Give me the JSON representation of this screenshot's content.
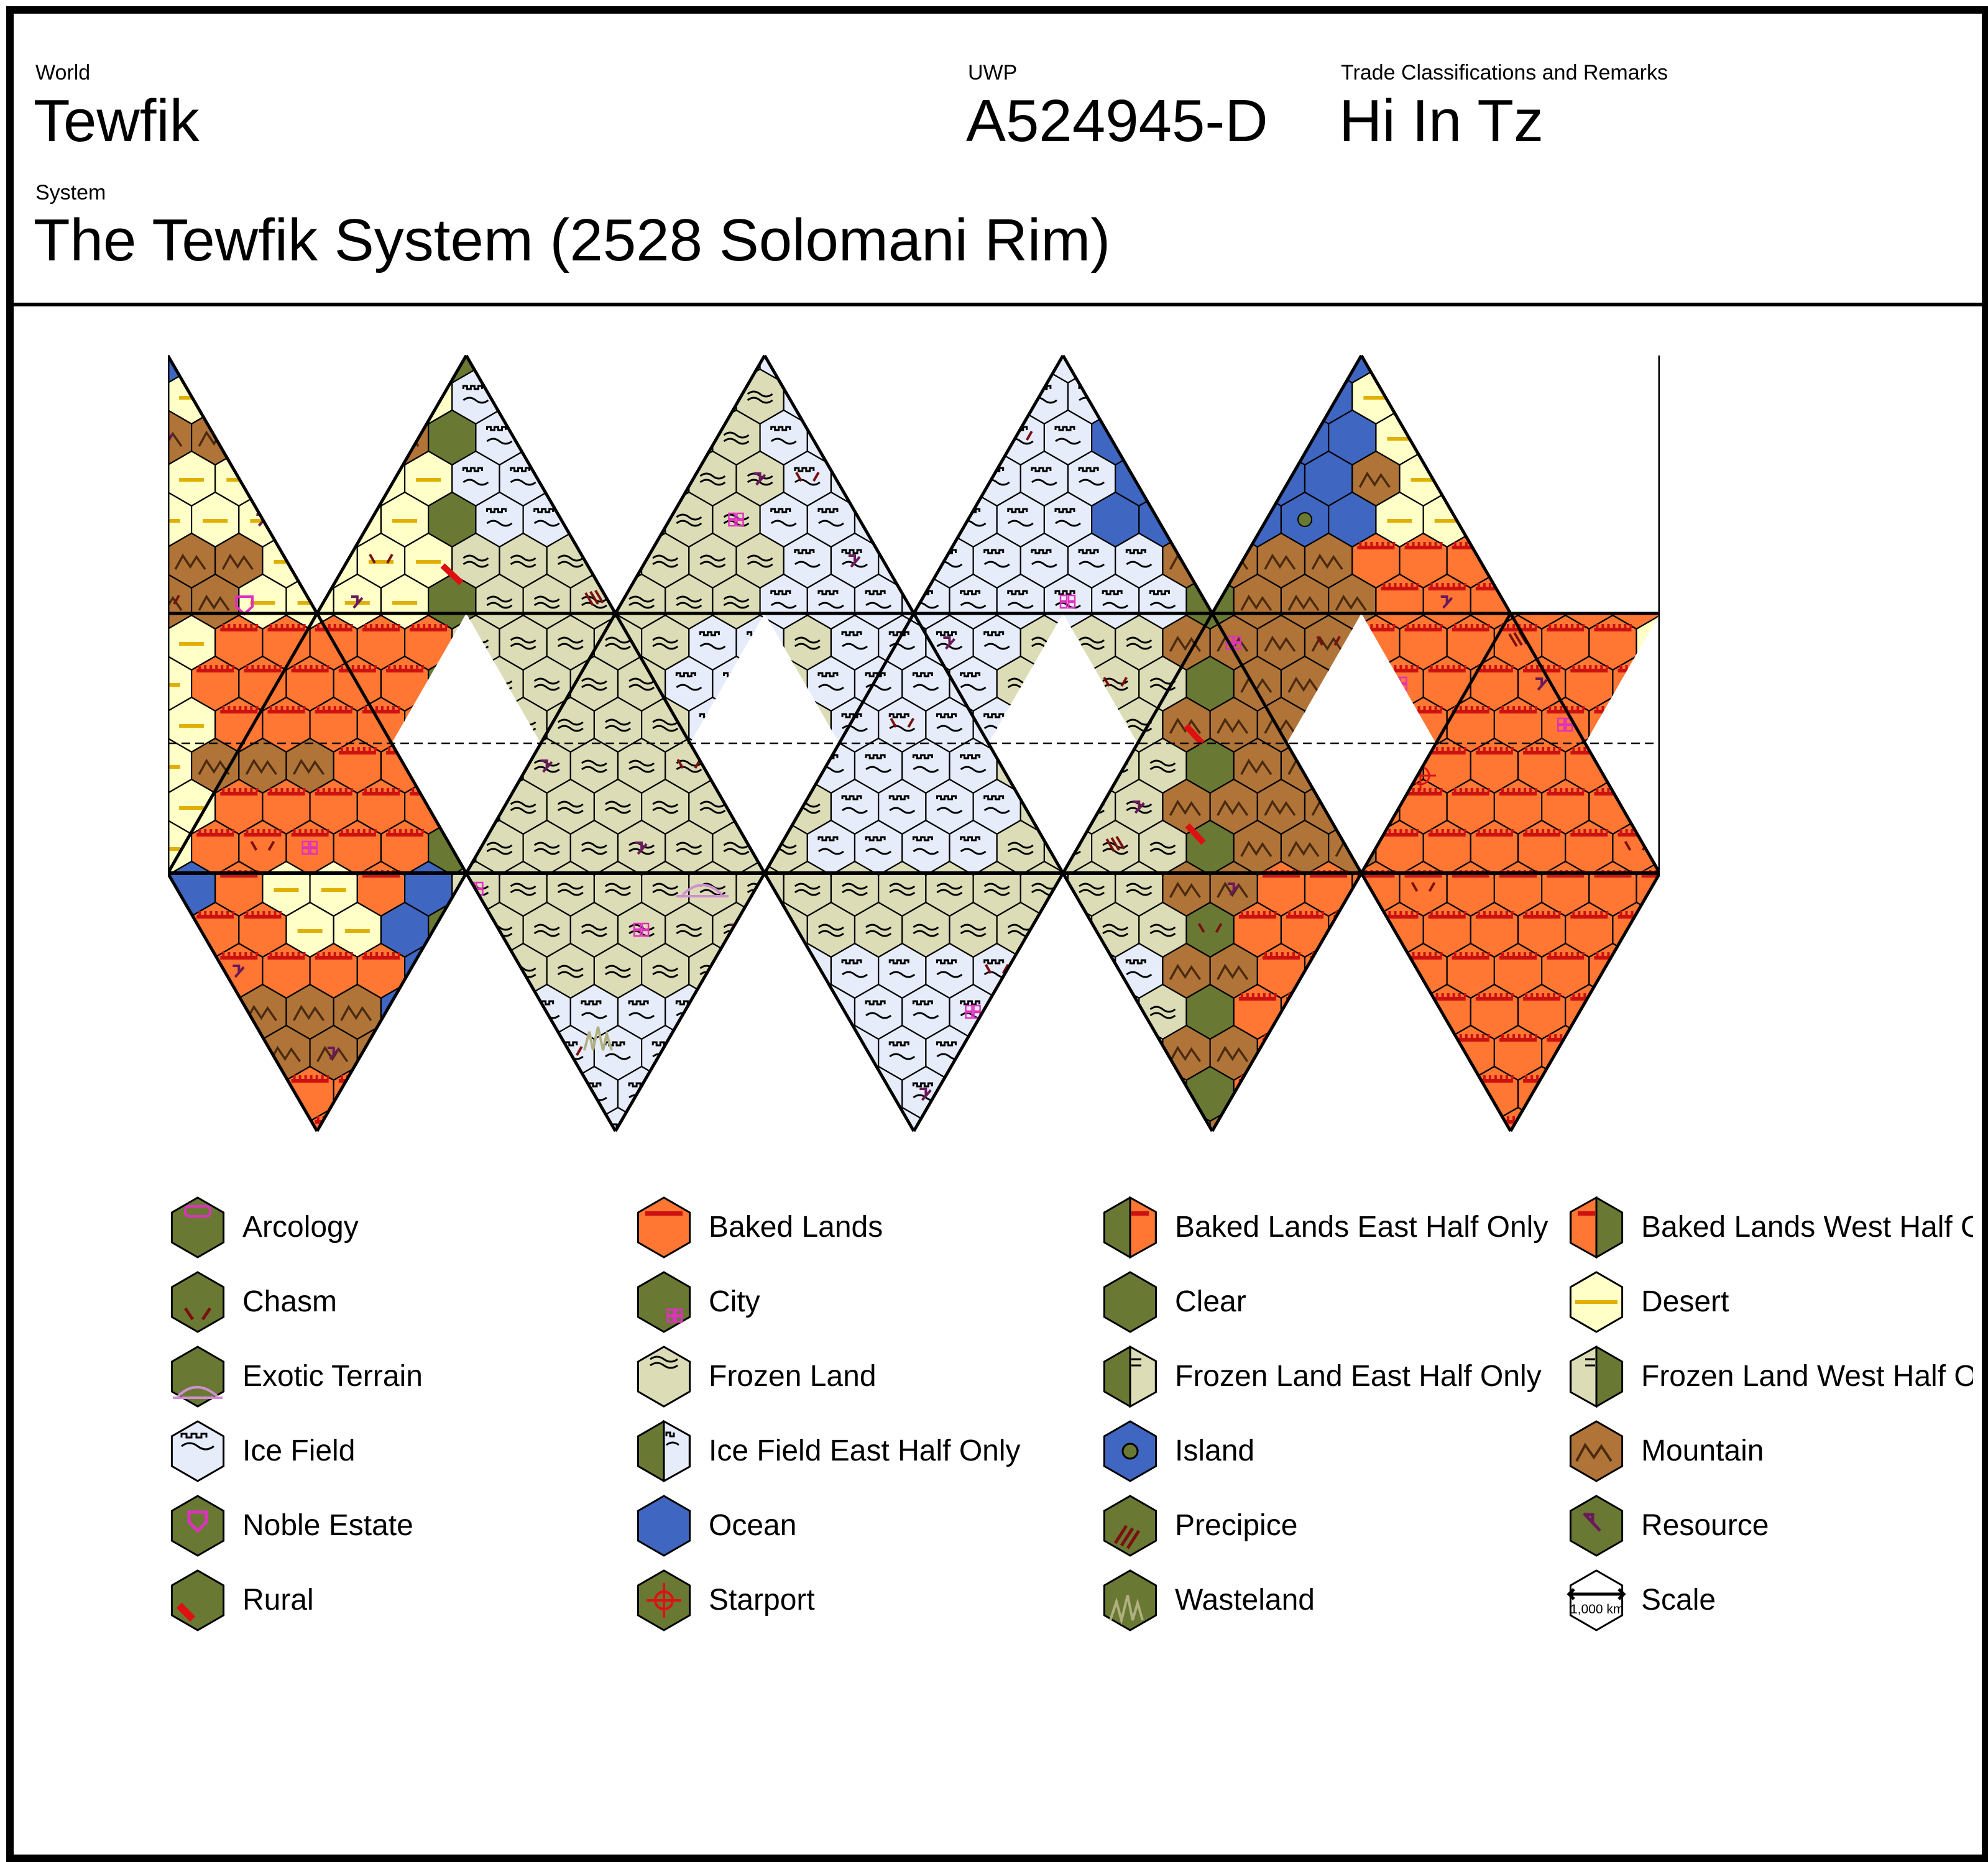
{
  "header": {
    "world_label": "World",
    "world_name": "Tewfik",
    "uwp_label": "UWP",
    "uwp_value": "A524945-D",
    "trade_label": "Trade Classifications and Remarks",
    "trade_value": "Hi In Tz",
    "system_label": "System",
    "system_value": "The Tewfik System (2528 Solomani Rim)"
  },
  "colors": {
    "clear": "#697934",
    "ocean": "#3f66c0",
    "baked": "#ff7733",
    "baked_line": "#cc1111",
    "desert": "#ffffc8",
    "desert_line": "#e0b000",
    "frozen": "#dcdcb6",
    "ice": "#e6ecfa",
    "mountain": "#b07438",
    "island_dot": "#697934",
    "accent_magenta": "#e030c0",
    "resource": "#6a1a5a",
    "chasm": "#7a1010",
    "starport": "#dd1111",
    "exotic": "#d090d0",
    "wasteland": "#b0b080"
  },
  "map": {
    "projection": "icosahedral",
    "faces_per_row": 5,
    "bands": [
      "north-cap",
      "equator",
      "south-cap"
    ],
    "terrain_by_column": [
      {
        "north": "ocean,mountain,desert",
        "equator": "baked,desert",
        "south": "baked,desert,ocean"
      },
      {
        "north": "ice,frozen",
        "equator": "frozen,ice",
        "south": "frozen,ocean"
      },
      {
        "north": "frozen,ice",
        "equator": "ice,frozen",
        "south": "ice,frozen"
      },
      {
        "north": "ice,ocean",
        "equator": "frozen,clear,baked",
        "south": "frozen,clear,baked"
      },
      {
        "north": "desert,mountain",
        "equator": "baked,mountain",
        "south": "baked"
      }
    ]
  },
  "legend": [
    {
      "label": "Arcology",
      "icon": "arcology-icon"
    },
    {
      "label": "Baked Lands",
      "icon": "baked-lands-icon"
    },
    {
      "label": "Baked Lands East Half Only",
      "icon": "baked-lands-east-half-icon"
    },
    {
      "label": "Baked Lands West Half Only",
      "icon": "baked-lands-west-half-icon"
    },
    {
      "label": "Chasm",
      "icon": "chasm-icon"
    },
    {
      "label": "City",
      "icon": "city-icon"
    },
    {
      "label": "Clear",
      "icon": "clear-icon"
    },
    {
      "label": "Desert",
      "icon": "desert-icon"
    },
    {
      "label": "Exotic Terrain",
      "icon": "exotic-terrain-icon"
    },
    {
      "label": "Frozen Land",
      "icon": "frozen-land-icon"
    },
    {
      "label": "Frozen Land East Half Only",
      "icon": "frozen-land-east-half-icon"
    },
    {
      "label": "Frozen Land West Half Only",
      "icon": "frozen-land-west-half-icon"
    },
    {
      "label": "Ice Field",
      "icon": "ice-field-icon"
    },
    {
      "label": "Ice Field East Half Only",
      "icon": "ice-field-east-half-icon"
    },
    {
      "label": "Island",
      "icon": "island-icon"
    },
    {
      "label": "Mountain",
      "icon": "mountain-icon"
    },
    {
      "label": "Noble Estate",
      "icon": "noble-estate-icon"
    },
    {
      "label": "Ocean",
      "icon": "ocean-icon"
    },
    {
      "label": "Precipice",
      "icon": "precipice-icon"
    },
    {
      "label": "Resource",
      "icon": "resource-icon"
    },
    {
      "label": "Rural",
      "icon": "rural-icon"
    },
    {
      "label": "Starport",
      "icon": "starport-icon"
    },
    {
      "label": "Wasteland",
      "icon": "wasteland-icon"
    },
    {
      "label": "Scale",
      "icon": "scale-icon",
      "scale_text": "1,000 km"
    }
  ]
}
